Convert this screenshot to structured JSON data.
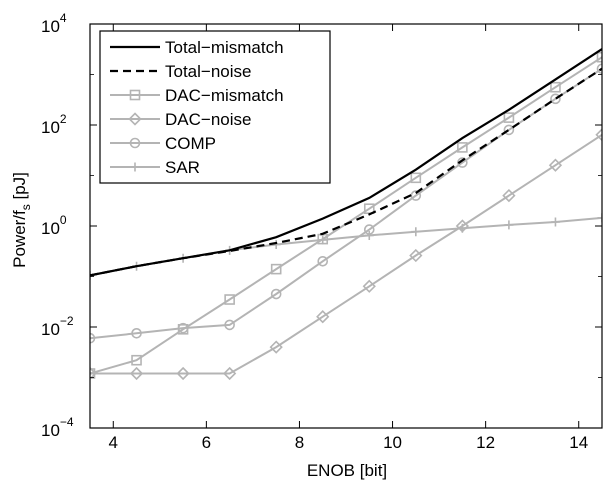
{
  "chart_data": {
    "type": "line",
    "xlabel": "ENOB [bit]",
    "ylabel_main": "Power/f",
    "ylabel_sub": "s",
    "ylabel_unit": " [pJ]",
    "xlim": [
      3.5,
      14.5
    ],
    "ylim": [
      0.0001,
      10000
    ],
    "yscale": "log",
    "grid": false,
    "legend_position": "top-left",
    "x_ticks": [
      {
        "value": 4,
        "label": "4"
      },
      {
        "value": 6,
        "label": "6"
      },
      {
        "value": 8,
        "label": "8"
      },
      {
        "value": 10,
        "label": "10"
      },
      {
        "value": 12,
        "label": "12"
      },
      {
        "value": 14,
        "label": "14"
      }
    ],
    "y_ticks": [
      {
        "value": 0.0001,
        "base": "10",
        "exp": "−4"
      },
      {
        "value": 0.01,
        "base": "10",
        "exp": "−2"
      },
      {
        "value": 1,
        "base": "10",
        "exp": "0"
      },
      {
        "value": 100,
        "base": "10",
        "exp": "2"
      },
      {
        "value": 10000,
        "base": "10",
        "exp": "4"
      }
    ],
    "series": [
      {
        "name": "Total−mismatch",
        "color": "#000000",
        "dash": "solid",
        "marker": "none",
        "x": [
          3.5,
          4.5,
          5.5,
          6.5,
          7.5,
          8.5,
          9.5,
          10.5,
          11.5,
          12.5,
          13.5,
          14.5
        ],
        "y": [
          0.105,
          0.16,
          0.23,
          0.33,
          0.6,
          1.4,
          3.6,
          13,
          55,
          200,
          800,
          3200
        ]
      },
      {
        "name": "Total−noise",
        "color": "#000000",
        "dash": "dashed",
        "marker": "none",
        "x": [
          3.5,
          4.5,
          5.5,
          6.5,
          7.5,
          8.5,
          9.5,
          10.5,
          11.5,
          12.5,
          13.5,
          14.5
        ],
        "y": [
          0.105,
          0.16,
          0.23,
          0.32,
          0.46,
          0.7,
          1.7,
          4.5,
          20,
          80,
          330,
          1300
        ]
      },
      {
        "name": "DAC−mismatch",
        "color": "#b4b4b4",
        "dash": "solid",
        "marker": "square",
        "x": [
          3.5,
          4.5,
          5.5,
          6.5,
          7.5,
          8.5,
          9.5,
          10.5,
          11.5,
          12.5,
          13.5,
          14.5
        ],
        "y": [
          0.0012,
          0.0022,
          0.009,
          0.035,
          0.14,
          0.55,
          2.2,
          9,
          36,
          140,
          560,
          2200
        ]
      },
      {
        "name": "DAC−noise",
        "color": "#b4b4b4",
        "dash": "solid",
        "marker": "diamond",
        "x": [
          3.5,
          4.5,
          5.5,
          6.5,
          7.5,
          8.5,
          9.5,
          10.5,
          11.5,
          12.5,
          13.5,
          14.5
        ],
        "y": [
          0.0012,
          0.0012,
          0.0012,
          0.0012,
          0.004,
          0.016,
          0.064,
          0.26,
          1.0,
          4.0,
          16,
          64
        ]
      },
      {
        "name": "COMP",
        "color": "#b4b4b4",
        "dash": "solid",
        "marker": "circle",
        "x": [
          3.5,
          4.5,
          5.5,
          6.5,
          7.5,
          8.5,
          9.5,
          10.5,
          11.5,
          12.5,
          13.5,
          14.5
        ],
        "y": [
          0.006,
          0.0075,
          0.0095,
          0.011,
          0.045,
          0.2,
          0.85,
          4,
          18,
          80,
          330,
          1300
        ]
      },
      {
        "name": "SAR",
        "color": "#b4b4b4",
        "dash": "solid",
        "marker": "plus",
        "x": [
          3.5,
          4.5,
          5.5,
          6.5,
          7.5,
          8.5,
          9.5,
          10.5,
          11.5,
          12.5,
          13.5,
          14.5
        ],
        "y": [
          0.105,
          0.16,
          0.23,
          0.33,
          0.43,
          0.53,
          0.65,
          0.77,
          0.9,
          1.05,
          1.2,
          1.45
        ]
      }
    ]
  }
}
